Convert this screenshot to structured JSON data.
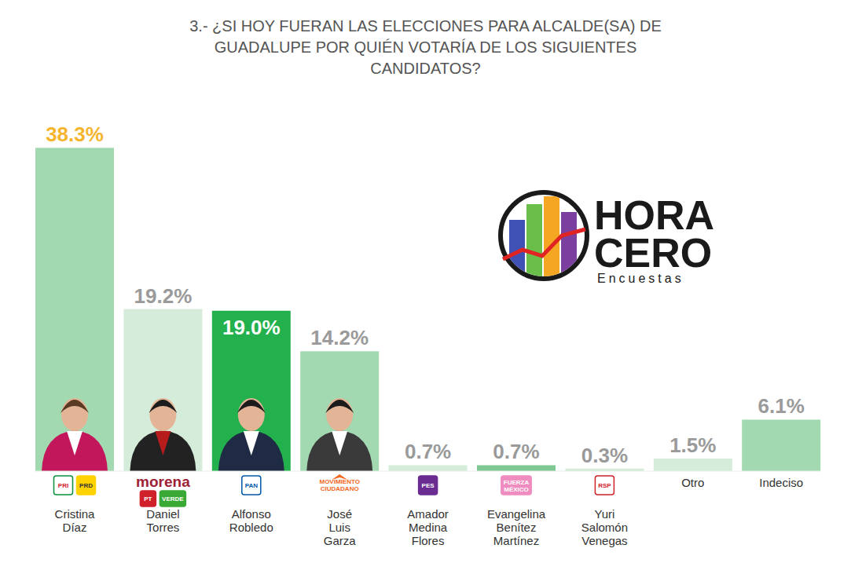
{
  "chart_data": {
    "type": "bar",
    "title": "3.- ¿SI HOY FUERAN LAS ELECCIONES PARA ALCALDE(SA) DE GUADALUPE POR QUIÉN VOTARÍA DE LOS SIGUIENTES CANDIDATOS?",
    "categories": [
      "Cristina Díaz",
      "Daniel Torres",
      "Alfonso Robledo",
      "José Luis Garza",
      "Amador Medina Flores",
      "Evangelina Benítez Martínez",
      "Yuri Salomón Venegas",
      "Otro",
      "Indeciso"
    ],
    "values": [
      38.3,
      19.2,
      19.0,
      14.2,
      0.7,
      0.7,
      0.3,
      1.5,
      6.1
    ],
    "value_labels": [
      "38.3%",
      "19.2%",
      "19.0%",
      "14.2%",
      "0.7%",
      "0.7%",
      "0.3%",
      "1.5%",
      "6.1%"
    ],
    "colors": [
      "#a3d9b1",
      "#d4ecd9",
      "#22b14c",
      "#a3d9b1",
      "#d4ecd9",
      "#7fc893",
      "#d4ecd9",
      "#d4ecd9",
      "#a3d9b1"
    ],
    "ylim": [
      0,
      40
    ],
    "tick_labels": false,
    "grid": false,
    "data_labels": true,
    "party_logos": [
      [
        "PRI",
        "PRD"
      ],
      [
        "morena",
        "PT",
        "VERDE"
      ],
      [
        "PAN"
      ],
      [
        "MOVIMIENTO CIUDADANO"
      ],
      [
        "PES"
      ],
      [
        "FUERZA MÉXICO"
      ],
      [
        "RSP"
      ],
      [],
      []
    ],
    "annotations": [
      "HORA",
      "CERO",
      "Encuestas"
    ]
  }
}
